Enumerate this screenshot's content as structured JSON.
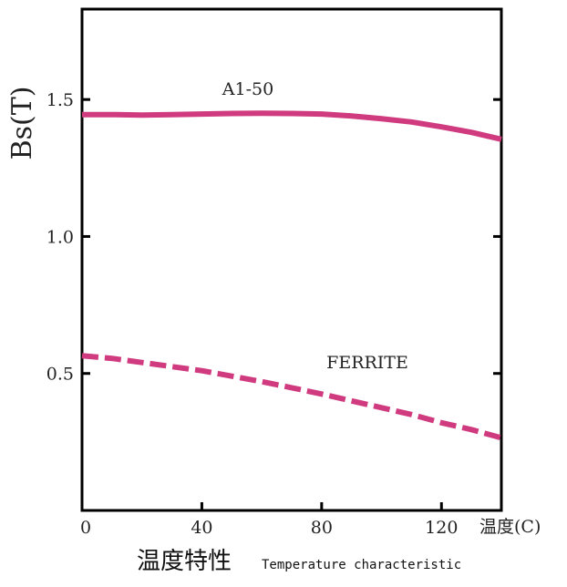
{
  "chart_data": {
    "type": "line",
    "title": "",
    "ylabel": "Bs(T)",
    "xunit_label": "温度(C)",
    "caption_jp": "温度特性",
    "caption_en": "Temperature characteristic",
    "xlim": [
      0,
      140
    ],
    "ylim": [
      0,
      1.83
    ],
    "x_ticks": [
      0,
      40,
      80,
      120
    ],
    "x_tick_labels": [
      "0",
      "40",
      "80",
      "120"
    ],
    "y_ticks": [
      0.5,
      1.0,
      1.5
    ],
    "y_tick_labels": [
      "0.5",
      "1.0",
      "1.5"
    ],
    "grid": false,
    "color": "#d03a7e",
    "series": [
      {
        "name": "A1-50",
        "style": "solid",
        "x": [
          0,
          10,
          20,
          30,
          40,
          50,
          60,
          70,
          80,
          90,
          100,
          110,
          120,
          130,
          140
        ],
        "values": [
          1.445,
          1.445,
          1.443,
          1.445,
          1.447,
          1.449,
          1.45,
          1.449,
          1.447,
          1.44,
          1.43,
          1.418,
          1.4,
          1.38,
          1.355
        ]
      },
      {
        "name": "FERRITE",
        "style": "dashed",
        "x": [
          0,
          10,
          20,
          30,
          40,
          50,
          60,
          70,
          80,
          90,
          100,
          110,
          120,
          130,
          140
        ],
        "values": [
          0.565,
          0.555,
          0.54,
          0.525,
          0.51,
          0.49,
          0.47,
          0.448,
          0.425,
          0.4,
          0.375,
          0.35,
          0.32,
          0.295,
          0.265
        ]
      }
    ]
  }
}
